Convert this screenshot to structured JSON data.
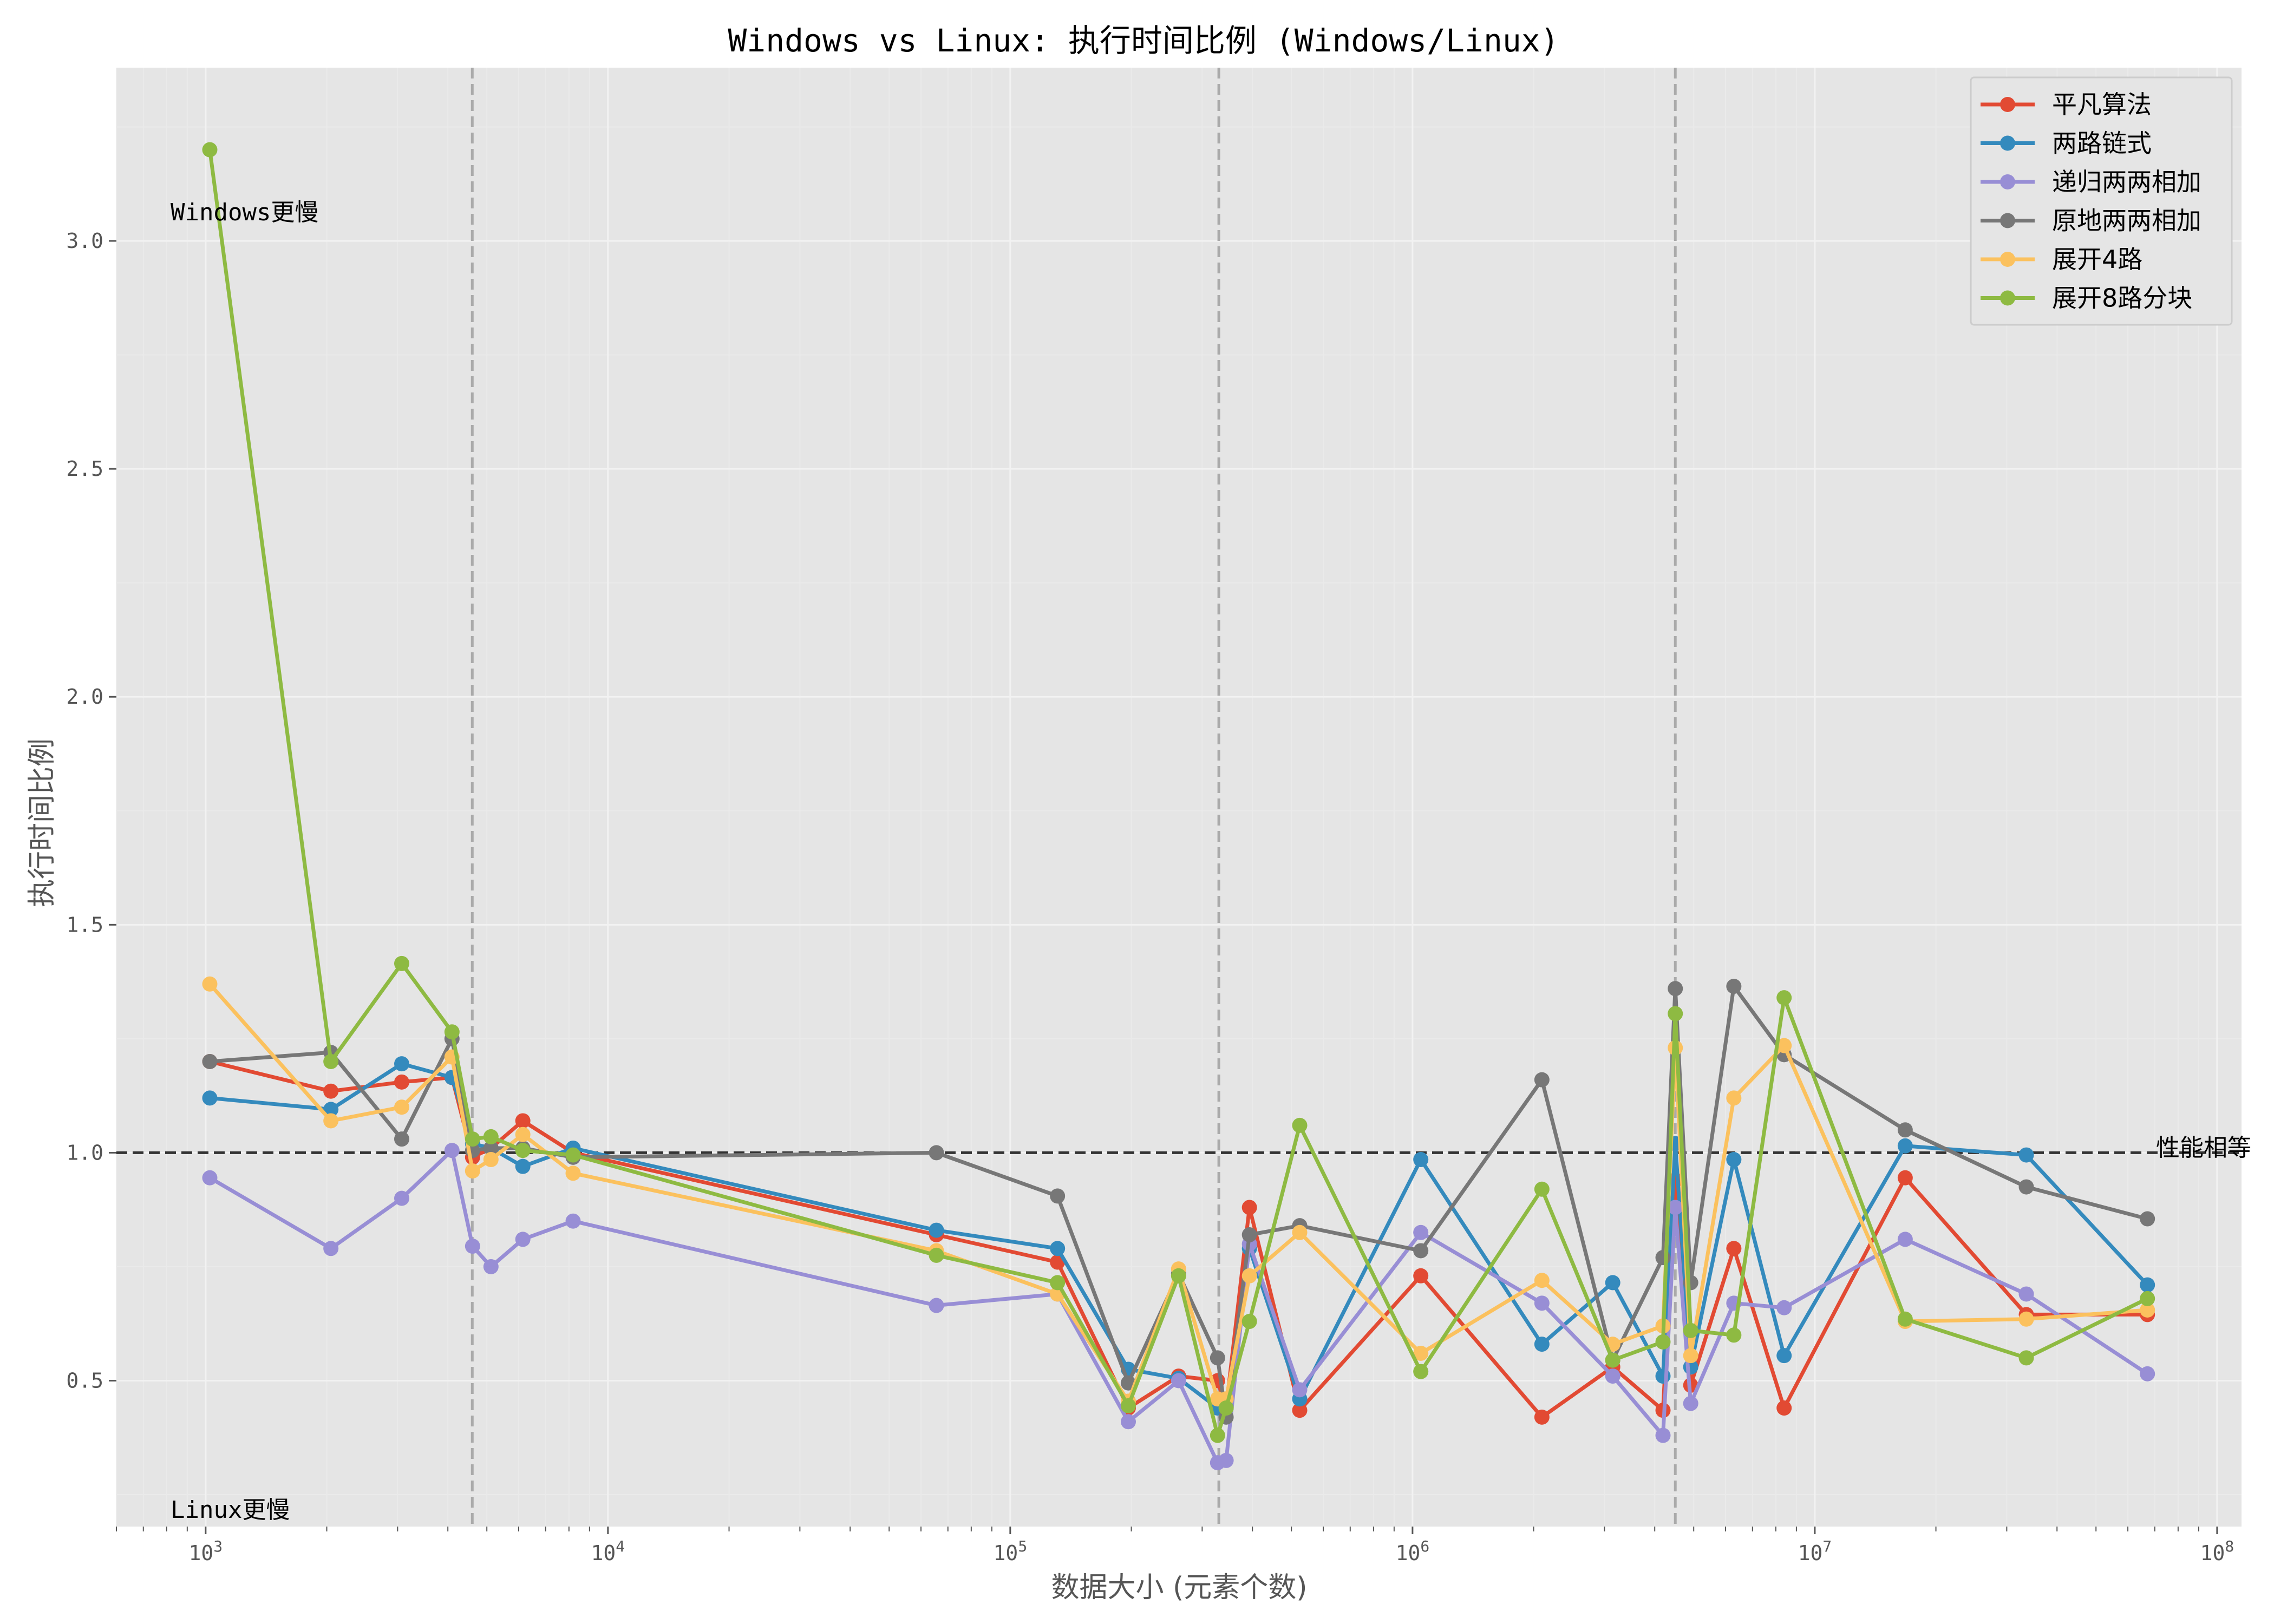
{
  "chart_data": {
    "type": "line",
    "title": "Windows vs Linux: 执行时间比例 (Windows/Linux)",
    "xlabel": "数据大小 (元素个数)",
    "ylabel": "执行时间比例",
    "x_scale": "log",
    "xlim": [
      600,
      115000000
    ],
    "ylim": [
      0.18,
      3.38
    ],
    "grid": true,
    "legend_position": "top-right",
    "x_ticks": [
      {
        "value": 1000,
        "base": "10",
        "exp": "3"
      },
      {
        "value": 10000,
        "base": "10",
        "exp": "4"
      },
      {
        "value": 100000,
        "base": "10",
        "exp": "5"
      },
      {
        "value": 1000000,
        "base": "10",
        "exp": "6"
      },
      {
        "value": 10000000,
        "base": "10",
        "exp": "7"
      },
      {
        "value": 100000000,
        "base": "10",
        "exp": "8"
      }
    ],
    "y_ticks": [
      {
        "value": 0.5,
        "label": "0.5"
      },
      {
        "value": 1.0,
        "label": "1.0"
      },
      {
        "value": 1.5,
        "label": "1.5"
      },
      {
        "value": 2.0,
        "label": "2.0"
      },
      {
        "value": 2.5,
        "label": "2.5"
      },
      {
        "value": 3.0,
        "label": "3.0"
      }
    ],
    "reference_line": {
      "y": 1.0,
      "label": "性能相等"
    },
    "vertical_lines": [
      4600,
      330000,
      4500000
    ],
    "annotations": {
      "top": "Windows更慢",
      "bottom": "Linux更慢"
    },
    "x": [
      1024,
      2048,
      3072,
      4096,
      4608,
      5120,
      6144,
      8192,
      65536,
      131072,
      196608,
      262144,
      327680,
      344064,
      393216,
      524288,
      1048576,
      2097152,
      3145728,
      4194304,
      4500000,
      4915200,
      6291456,
      8388608,
      16777216,
      33554432,
      67108864
    ],
    "series": [
      {
        "name": "平凡算法",
        "color": "#E24A33",
        "values": [
          1.2,
          1.135,
          1.155,
          1.165,
          0.99,
          1.01,
          1.07,
          1.0,
          0.82,
          0.76,
          0.44,
          0.51,
          0.5,
          0.44,
          0.88,
          0.435,
          0.73,
          0.42,
          0.53,
          0.435,
          0.94,
          0.49,
          0.79,
          0.44,
          0.945,
          0.645,
          0.645
        ]
      },
      {
        "name": "两路链式",
        "color": "#348ABD",
        "values": [
          1.12,
          1.095,
          1.195,
          1.165,
          1.02,
          1.01,
          0.97,
          1.01,
          0.83,
          0.79,
          0.525,
          0.505,
          0.44,
          0.44,
          0.79,
          0.46,
          0.985,
          0.58,
          0.715,
          0.51,
          1.02,
          0.53,
          0.985,
          0.555,
          1.015,
          0.995,
          0.71
        ]
      },
      {
        "name": "递归两两相加",
        "color": "#988ED5",
        "values": [
          0.945,
          0.79,
          0.9,
          1.005,
          0.795,
          0.75,
          0.81,
          0.85,
          0.665,
          0.69,
          0.41,
          0.5,
          0.32,
          0.325,
          0.8,
          0.48,
          0.825,
          0.67,
          0.51,
          0.38,
          0.88,
          0.45,
          0.67,
          0.66,
          0.81,
          0.69,
          0.515
        ]
      },
      {
        "name": "原地两两相加",
        "color": "#777777",
        "values": [
          1.2,
          1.22,
          1.03,
          1.25,
          1.005,
          1.01,
          1.01,
          0.99,
          1.0,
          0.905,
          0.495,
          0.735,
          0.55,
          0.42,
          0.82,
          0.84,
          0.785,
          1.16,
          0.545,
          0.77,
          1.36,
          0.715,
          1.365,
          1.215,
          1.05,
          0.925,
          0.855
        ]
      },
      {
        "name": "展开4路",
        "color": "#FBC15E",
        "values": [
          1.37,
          1.07,
          1.1,
          1.21,
          0.96,
          0.985,
          1.04,
          0.955,
          0.785,
          0.69,
          0.455,
          0.745,
          0.46,
          0.46,
          0.73,
          0.825,
          0.56,
          0.72,
          0.58,
          0.62,
          1.23,
          0.555,
          1.12,
          1.235,
          0.63,
          0.635,
          0.655
        ]
      },
      {
        "name": "展开8路分块",
        "color": "#8EBA42",
        "values": [
          3.2,
          1.2,
          1.415,
          1.265,
          1.03,
          1.035,
          1.005,
          0.995,
          0.775,
          0.715,
          0.445,
          0.73,
          0.38,
          0.44,
          0.63,
          1.06,
          0.52,
          0.92,
          0.545,
          0.585,
          1.305,
          0.61,
          0.6,
          1.34,
          0.635,
          0.55,
          0.68
        ]
      }
    ]
  }
}
